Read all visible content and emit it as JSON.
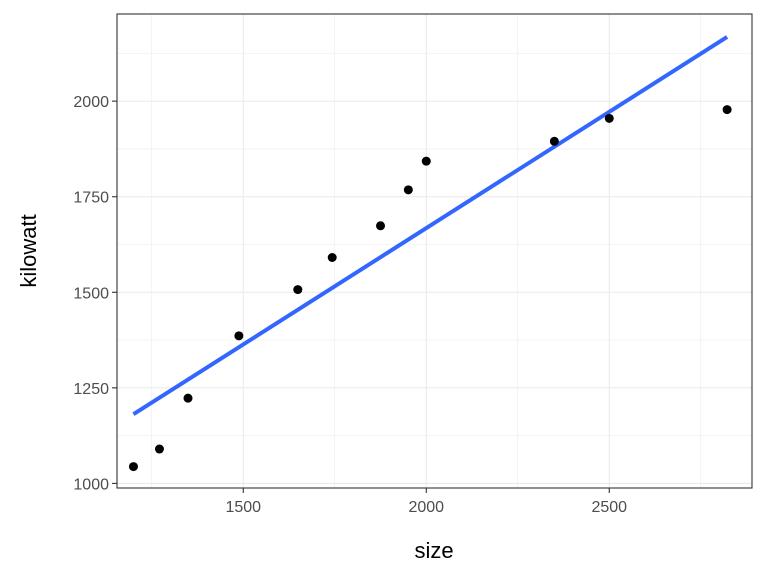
{
  "chart_data": {
    "type": "scatter",
    "xlabel": "size",
    "ylabel": "kilowatt",
    "xlim": [
      1155,
      2890
    ],
    "ylim": [
      988,
      2228
    ],
    "xticks": [
      1500,
      2000,
      2500
    ],
    "yticks": [
      1000,
      1250,
      1500,
      1750,
      2000
    ],
    "xtick_labels": [
      "1500",
      "2000",
      "2500"
    ],
    "ytick_labels": [
      "1000",
      "1250",
      "1500",
      "1750",
      "2000"
    ],
    "grid": true,
    "points": [
      {
        "x": 1200,
        "y": 1044
      },
      {
        "x": 1271,
        "y": 1090
      },
      {
        "x": 1349,
        "y": 1223
      },
      {
        "x": 1488,
        "y": 1386
      },
      {
        "x": 1649,
        "y": 1507
      },
      {
        "x": 1743,
        "y": 1591
      },
      {
        "x": 1875,
        "y": 1674
      },
      {
        "x": 1951,
        "y": 1768
      },
      {
        "x": 2000,
        "y": 1843
      },
      {
        "x": 2350,
        "y": 1895
      },
      {
        "x": 2500,
        "y": 1955
      },
      {
        "x": 2822,
        "y": 1978
      }
    ],
    "fit_line": {
      "x": [
        1200,
        2822
      ],
      "y": [
        1181,
        2168
      ]
    },
    "colors": {
      "points": "#000000",
      "fit_line": "#3366ff",
      "grid": "#ebebeb",
      "panel_border": "#333333"
    }
  }
}
